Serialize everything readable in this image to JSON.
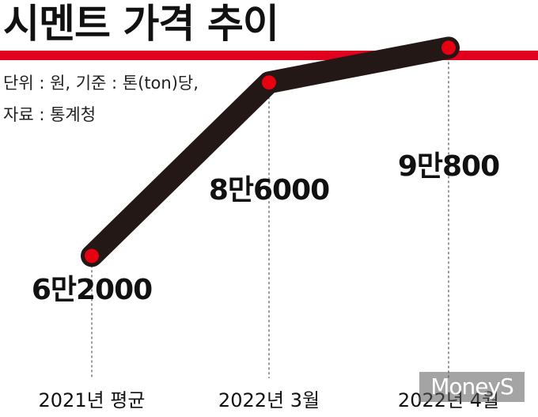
{
  "header": {
    "title": "시멘트 가격 추이",
    "unit_note": "단위 : 원, 기준 : 톤(ton)당,",
    "source_note": "자료 : 통계청"
  },
  "watermark": "MoneyS",
  "colors": {
    "accent": "#e1001e",
    "line": "#231815",
    "point": "#e60012"
  },
  "chart_data": {
    "type": "line",
    "title": "시멘트 가격 추이",
    "xlabel": "",
    "ylabel": "",
    "grid": false,
    "categories": [
      "2021년  평균",
      "2022년 3월",
      "2022년 4월"
    ],
    "values": [
      62000,
      86000,
      90800
    ],
    "data_labels": [
      "6만2000",
      "8만6000",
      "9만800"
    ],
    "ylim": [
      50000,
      95000
    ]
  }
}
